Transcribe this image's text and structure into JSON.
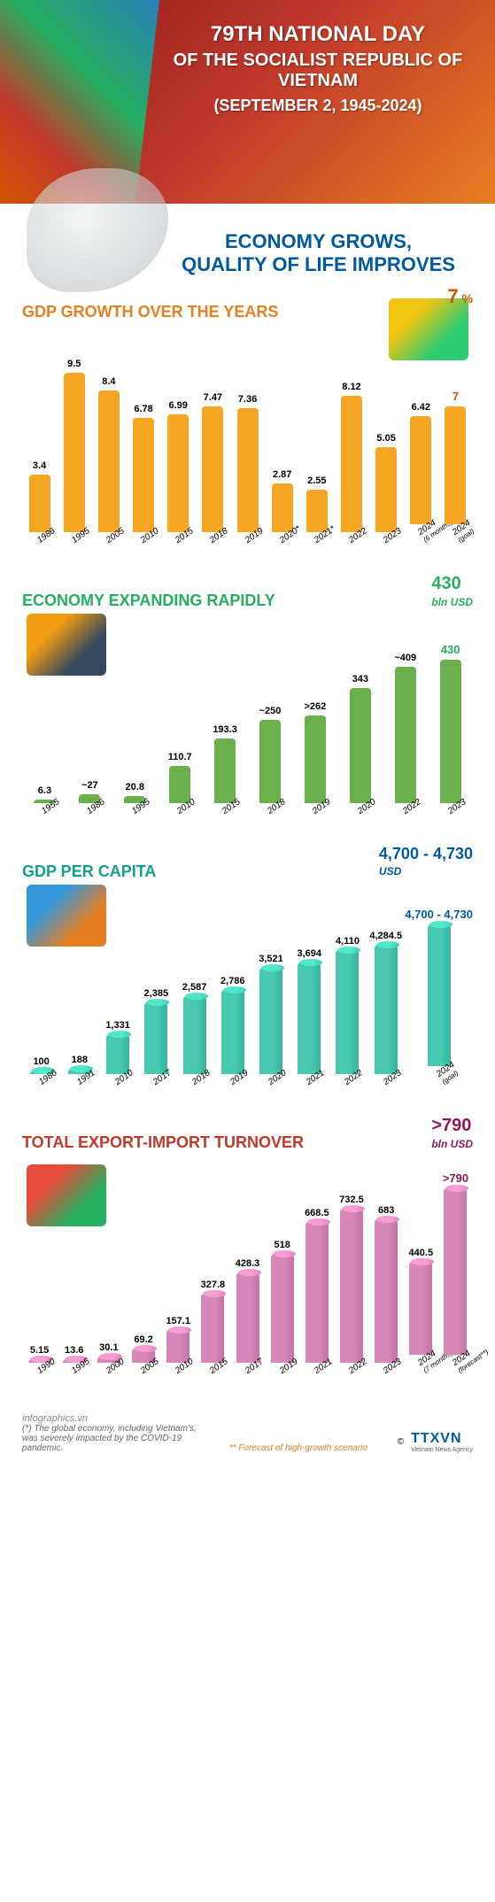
{
  "header": {
    "line1": "79TH NATIONAL DAY",
    "line2": "OF THE SOCIALIST REPUBLIC OF VIETNAM",
    "line3": "(SEPTEMBER 2, 1945-2024)"
  },
  "subtitle": {
    "line1": "ECONOMY GROWS,",
    "line2": "QUALITY OF LIFE IMPROVES"
  },
  "charts": {
    "gdp_growth": {
      "type": "bar",
      "title": "GDP GROWTH OVER THE YEARS",
      "title_color": "#e67e22",
      "bar_color": "#f5a623",
      "ymax": 10,
      "unit_value": "7",
      "unit_suffix": "%",
      "unit_color": "#d35400",
      "data": [
        {
          "x": "1986",
          "v": 3.4,
          "label": "3.4"
        },
        {
          "x": "1995",
          "v": 9.5,
          "label": "9.5"
        },
        {
          "x": "2005",
          "v": 8.4,
          "label": "8.4"
        },
        {
          "x": "2010",
          "v": 6.78,
          "label": "6.78"
        },
        {
          "x": "2015",
          "v": 6.99,
          "label": "6.99"
        },
        {
          "x": "2018",
          "v": 7.47,
          "label": "7.47"
        },
        {
          "x": "2019",
          "v": 7.36,
          "label": "7.36"
        },
        {
          "x": "2020*",
          "v": 2.87,
          "label": "2.87"
        },
        {
          "x": "2021*",
          "v": 2.55,
          "label": "2.55"
        },
        {
          "x": "2022",
          "v": 8.12,
          "label": "8.12"
        },
        {
          "x": "2023",
          "v": 5.05,
          "label": "5.05"
        },
        {
          "x": "2024",
          "xsub": "(6 months)",
          "v": 6.42,
          "label": "6.42"
        },
        {
          "x": "2024",
          "xsub": "(goal)",
          "v": 7.0,
          "label": "7",
          "highlight": true
        }
      ]
    },
    "economy_size": {
      "type": "bar",
      "title": "ECONOMY EXPANDING RAPIDLY",
      "title_color": "#27ae60",
      "bar_color": "#6ab04c",
      "ymax": 450,
      "unit_value": "430",
      "unit_suffix": "bln USD",
      "unit_color": "#27ae60",
      "data": [
        {
          "x": "1955",
          "v": 6.3,
          "label": "6.3"
        },
        {
          "x": "1986",
          "v": 27,
          "label": "~27"
        },
        {
          "x": "1995",
          "v": 20.8,
          "label": "20.8"
        },
        {
          "x": "2010",
          "v": 110.7,
          "label": "110.7"
        },
        {
          "x": "2015",
          "v": 193.3,
          "label": "193.3"
        },
        {
          "x": "2018",
          "v": 250,
          "label": "~250"
        },
        {
          "x": "2019",
          "v": 262,
          "label": ">262"
        },
        {
          "x": "2020",
          "v": 343,
          "label": "343"
        },
        {
          "x": "2022",
          "v": 409,
          "label": "~409"
        },
        {
          "x": "2023",
          "v": 430,
          "label": "430",
          "highlight": true
        }
      ]
    },
    "gdp_per_capita": {
      "type": "bar-3d",
      "title": "GDP PER CAPITA",
      "title_color": "#16a085",
      "bar_color": "#48c9b0",
      "ymax": 5000,
      "unit_value": "4,700 - 4,730",
      "unit_suffix": "USD",
      "unit_color": "#005a9c",
      "data": [
        {
          "x": "1986",
          "v": 100,
          "label": "100"
        },
        {
          "x": "1991",
          "v": 188,
          "label": "188"
        },
        {
          "x": "2010",
          "v": 1331,
          "label": "1,331"
        },
        {
          "x": "2017",
          "v": 2385,
          "label": "2,385"
        },
        {
          "x": "2018",
          "v": 2587,
          "label": "2,587"
        },
        {
          "x": "2019",
          "v": 2786,
          "label": "2,786"
        },
        {
          "x": "2020",
          "v": 3521,
          "label": "3,521"
        },
        {
          "x": "2021",
          "v": 3694,
          "label": "3,694"
        },
        {
          "x": "2022",
          "v": 4110,
          "label": "4,110"
        },
        {
          "x": "2023",
          "v": 4284.5,
          "label": "4,284.5"
        },
        {
          "x": "2024",
          "xsub": "(goal)",
          "v": 4715,
          "label": "4,700 - 4,730",
          "highlight": true
        }
      ]
    },
    "trade": {
      "type": "bar-3d",
      "title": "TOTAL EXPORT-IMPORT TURNOVER",
      "title_color": "#c0392b",
      "bar_color": "#d888b8",
      "ymax": 800,
      "unit_value": ">790",
      "unit_suffix": "bln USD",
      "unit_color": "#8e1a5b",
      "data": [
        {
          "x": "1990",
          "v": 5.15,
          "label": "5.15"
        },
        {
          "x": "1995",
          "v": 13.6,
          "label": "13.6"
        },
        {
          "x": "2000",
          "v": 30.1,
          "label": "30.1"
        },
        {
          "x": "2005",
          "v": 69.2,
          "label": "69.2"
        },
        {
          "x": "2010",
          "v": 157.1,
          "label": "157.1"
        },
        {
          "x": "2015",
          "v": 327.8,
          "label": "327.8"
        },
        {
          "x": "2017",
          "v": 428.3,
          "label": "428.3"
        },
        {
          "x": "2019",
          "v": 518,
          "label": "518"
        },
        {
          "x": "2021",
          "v": 668.5,
          "label": "668.5"
        },
        {
          "x": "2022",
          "v": 732.5,
          "label": "732.5"
        },
        {
          "x": "2023",
          "v": 683,
          "label": "683"
        },
        {
          "x": "2024",
          "xsub": "(7 months)",
          "v": 440.5,
          "label": "440.5"
        },
        {
          "x": "2024",
          "xsub": "(forecast**)",
          "v": 790,
          "label": ">790",
          "highlight": true
        }
      ]
    }
  },
  "footer": {
    "note1": "(*) The global economy, including Vietnam's, was severely impacted by the COVID-19 pandemic.",
    "note2": "** Forecast of high-growth scenario",
    "source": "infographics.vn",
    "copyright": "©",
    "agency": "TTXVN",
    "agency_sub": "Vietnam News Agency"
  }
}
